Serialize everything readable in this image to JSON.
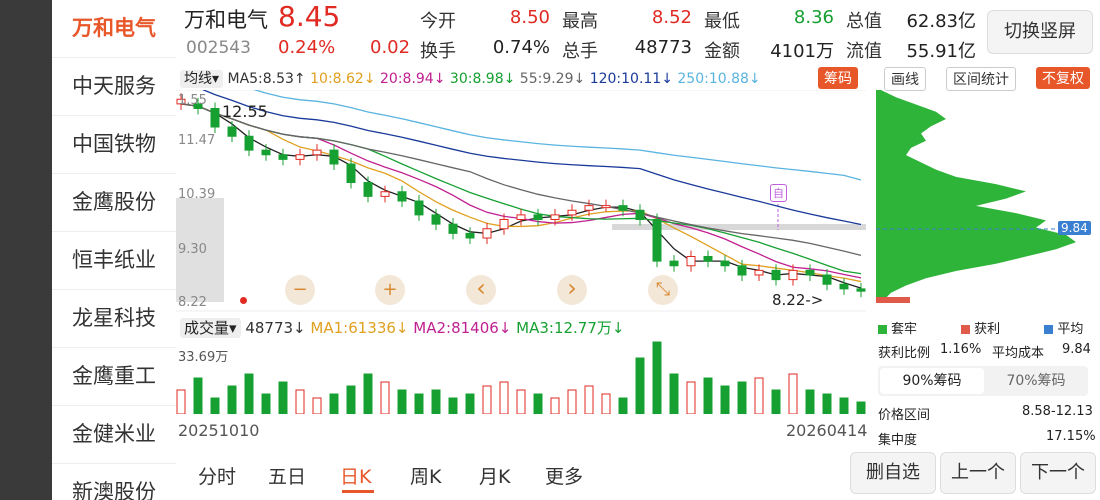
{
  "sidebar": {
    "items": [
      "万和电气",
      "中天服务",
      "中国铁物",
      "金鹰股份",
      "恒丰纸业",
      "龙星科技",
      "金鹰重工",
      "金健米业",
      "新澳股份"
    ]
  },
  "stock": {
    "name": "万和电气",
    "price": "8.45",
    "code": "002543",
    "change_pct": "0.24%",
    "change": "0.02"
  },
  "quote": {
    "open_label": "今开",
    "open": "8.50",
    "high_label": "最高",
    "high": "8.52",
    "low_label": "最低",
    "low": "8.36",
    "mktcap_label": "总值",
    "mktcap": "62.83亿",
    "turnover_label": "换手",
    "turnover": "0.74%",
    "volume_label": "总手",
    "volume": "48773",
    "amount_label": "金额",
    "amount": "4101万",
    "float_label": "流值",
    "float_cap": "55.91亿"
  },
  "switch_button": "切换竖屏",
  "ma_bar": {
    "mode": "均线",
    "ma5": "MA5:8.53↑",
    "ma10": "10:8.62↓",
    "ma20": "20:8.94↓",
    "ma30": "30:8.98↓",
    "ma55": "55:9.29↓",
    "ma120": "120:10.11↓",
    "ma250": "250:10.88↓",
    "chips": "筹码"
  },
  "right_tabs": {
    "draw": "画线",
    "range": "区间统计",
    "adjust": "不复权"
  },
  "kline": {
    "y_ticks": [
      "11.47",
      "10.39",
      "9.30",
      "8.22"
    ],
    "top_label": "1.55",
    "max_marker": "12.55",
    "min_marker": "8.22->",
    "self_marker": "自"
  },
  "chart_data": {
    "type": "line",
    "title": "",
    "x": [
      "20251010",
      "20260414"
    ],
    "ylim": [
      8.22,
      12.55
    ],
    "price_trend": [
      12.5,
      12.4,
      12.0,
      11.8,
      11.5,
      11.4,
      11.3,
      11.4,
      11.5,
      11.2,
      10.8,
      10.5,
      10.6,
      10.4,
      10.1,
      9.9,
      9.7,
      9.6,
      9.8,
      10.0,
      10.1,
      10.0,
      10.1,
      10.2,
      10.3,
      10.3,
      10.2,
      10.0,
      9.1,
      9.0,
      9.2,
      9.1,
      9.0,
      8.8,
      8.9,
      8.7,
      8.9,
      8.8,
      8.6,
      8.5,
      8.45
    ],
    "volume_label": "33.69万"
  },
  "chip_panel": {
    "current_price": "9.84",
    "legend_trapped": "套牢",
    "legend_profit": "获利",
    "legend_avg": "平均",
    "profit_ratio_label": "获利比例",
    "profit_ratio": "1.16%",
    "avg_cost_label": "平均成本",
    "avg_cost": "9.84",
    "tab90": "90%筹码",
    "tab70": "70%筹码",
    "price_range_label": "价格区间",
    "price_range": "8.58-12.13",
    "concentration_label": "集中度",
    "concentration": "17.15%"
  },
  "vol_bar": {
    "mode": "成交量",
    "vol": "48773↓",
    "ma1": "MA1:61336↓",
    "ma2": "MA2:81406↓",
    "ma3": "MA3:12.77万↓"
  },
  "dates": {
    "start": "20251010",
    "end": "20260414"
  },
  "period_tabs": [
    "分时",
    "五日",
    "日K",
    "周K",
    "月K",
    "更多"
  ],
  "bottom_buttons": {
    "delete": "删自选",
    "prev": "上一个",
    "next": "下一个"
  },
  "controls": {
    "zoom_out": "−",
    "zoom_in": "+",
    "left": "‹",
    "right": "›",
    "fullscreen": "⤡"
  },
  "colors": {
    "up": "#e02a22",
    "down": "#17a032",
    "accent": "#e8572a"
  }
}
